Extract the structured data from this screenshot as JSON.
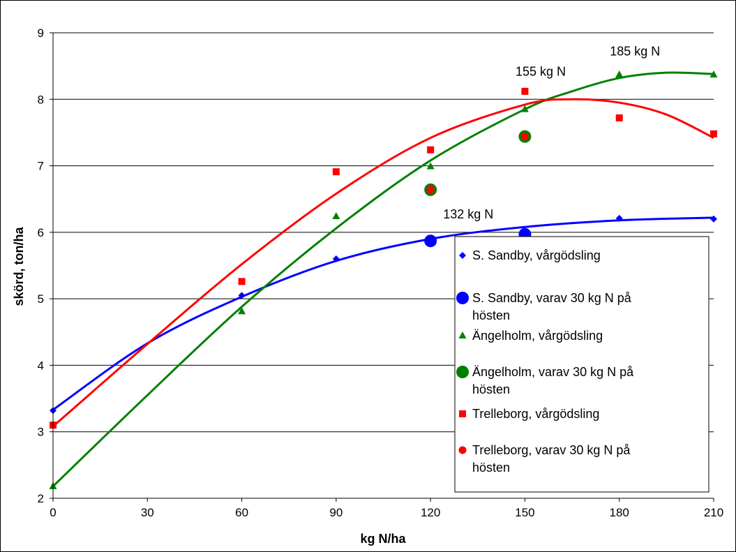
{
  "chart_data": {
    "type": "scatter",
    "xlabel": "kg N/ha",
    "ylabel": "skörd, ton/ha",
    "xlim": [
      0,
      210
    ],
    "ylim": [
      2,
      9
    ],
    "x_ticks": [
      "0",
      "30",
      "60",
      "90",
      "120",
      "150",
      "180",
      "210"
    ],
    "y_ticks": [
      "2",
      "3",
      "4",
      "5",
      "6",
      "7",
      "8",
      "9"
    ],
    "grid": "horizontal",
    "legend_position": "right",
    "annotations": [
      {
        "text": "132 kg N",
        "x": 132,
        "y": 6.27
      },
      {
        "text": "155 kg N",
        "x": 155,
        "y": 8.42
      },
      {
        "text": "185 kg N",
        "x": 185,
        "y": 8.72
      }
    ],
    "series": [
      {
        "name": "S. Sandby, vårgödsling",
        "marker": "diamond",
        "color": "#0000ff",
        "x": [
          0,
          60,
          90,
          120,
          150,
          180,
          210
        ],
        "y": [
          3.32,
          5.05,
          5.6,
          5.87,
          6.0,
          6.21,
          6.2
        ]
      },
      {
        "name": "S. Sandby, varav 30 kg N på hösten",
        "marker": "circle-large",
        "color": "#0000ff",
        "x": [
          120,
          150
        ],
        "y": [
          5.87,
          5.97
        ]
      },
      {
        "name": "Ängelholm, vårgödsling",
        "marker": "triangle",
        "color": "#008000",
        "x": [
          0,
          60,
          90,
          120,
          150,
          180,
          210
        ],
        "y": [
          2.18,
          4.81,
          6.24,
          6.99,
          7.85,
          8.37,
          8.37
        ]
      },
      {
        "name": "Ängelholm, varav 30 kg N på hösten",
        "marker": "circle-large",
        "color": "#008000",
        "x": [
          120,
          150
        ],
        "y": [
          6.64,
          7.44
        ]
      },
      {
        "name": "Trelleborg, vårgödsling",
        "marker": "square",
        "color": "#ff0000",
        "x": [
          0,
          60,
          90,
          120,
          150,
          180,
          210
        ],
        "y": [
          3.1,
          5.26,
          6.91,
          7.24,
          8.12,
          7.72,
          7.48
        ]
      },
      {
        "name": "Trelleborg, varav 30 kg N på hösten",
        "marker": "circle",
        "color": "#ff0000",
        "x": [
          120,
          150
        ],
        "y": [
          6.64,
          7.44
        ]
      }
    ],
    "trendlines": [
      {
        "color": "#0000ff",
        "x": [
          0,
          30,
          60,
          90,
          120,
          150,
          180,
          210
        ],
        "y": [
          3.33,
          4.33,
          5.03,
          5.57,
          5.9,
          6.08,
          6.18,
          6.22
        ]
      },
      {
        "color": "#008000",
        "x": [
          0,
          30,
          60,
          90,
          120,
          150,
          165,
          180,
          195,
          210
        ],
        "y": [
          2.18,
          3.55,
          4.88,
          6.06,
          7.08,
          7.85,
          8.12,
          8.32,
          8.4,
          8.38
        ]
      },
      {
        "color": "#ff0000",
        "x": [
          0,
          30,
          60,
          90,
          120,
          150,
          165,
          180,
          195,
          210
        ],
        "y": [
          3.08,
          4.32,
          5.52,
          6.58,
          7.42,
          7.92,
          8.0,
          7.95,
          7.77,
          7.42
        ]
      }
    ]
  }
}
